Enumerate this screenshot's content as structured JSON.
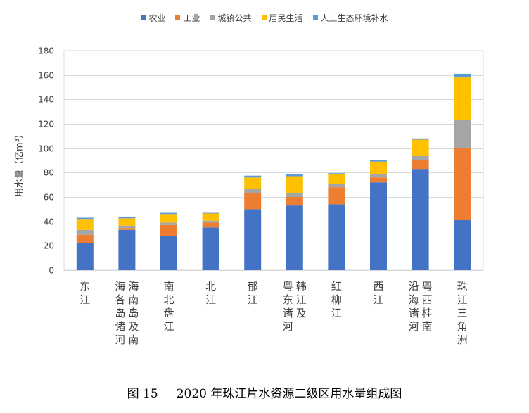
{
  "chart_data": {
    "type": "bar",
    "stacked": true,
    "ylabel": "用水量（亿m³）",
    "ylim": [
      0,
      180
    ],
    "yticks": [
      0,
      20,
      40,
      60,
      80,
      100,
      120,
      140,
      160,
      180
    ],
    "grid": true,
    "legend_position": "top",
    "categories": [
      [
        "东江"
      ],
      [
        "海南岛及南",
        "海各岛诸河"
      ],
      [
        "南北盘江"
      ],
      [
        "北江"
      ],
      [
        "郁江"
      ],
      [
        "韩江及",
        "粤东诸河"
      ],
      [
        "红柳江"
      ],
      [
        "西江"
      ],
      [
        "粤西桂南",
        "沿海诸河"
      ],
      [
        "珠江三角洲"
      ]
    ],
    "series": [
      {
        "name": "农业",
        "color": "#4472C4",
        "values": [
          22,
          33,
          28,
          35,
          50,
          53,
          54,
          72,
          83,
          41
        ]
      },
      {
        "name": "工业",
        "color": "#ED7D31",
        "values": [
          7,
          1.5,
          9,
          4,
          13,
          7,
          14,
          4,
          7,
          59
        ]
      },
      {
        "name": "城镇公共",
        "color": "#A5A5A5",
        "values": [
          4,
          2,
          2,
          1.5,
          3.5,
          3.5,
          2.5,
          3,
          3.5,
          23
        ]
      },
      {
        "name": "居民生活",
        "color": "#FFC000",
        "values": [
          9,
          6,
          7,
          6,
          9.5,
          13.5,
          8,
          10,
          13.5,
          35
        ]
      },
      {
        "name": "人工生态环境补水",
        "color": "#5B9BD5",
        "values": [
          1,
          1,
          1,
          0.5,
          1.5,
          1.5,
          1,
          1,
          1,
          3
        ]
      }
    ]
  },
  "caption": {
    "figure_number": "图 15",
    "title": "2020 年珠江片水资源二级区用水量组成图"
  }
}
